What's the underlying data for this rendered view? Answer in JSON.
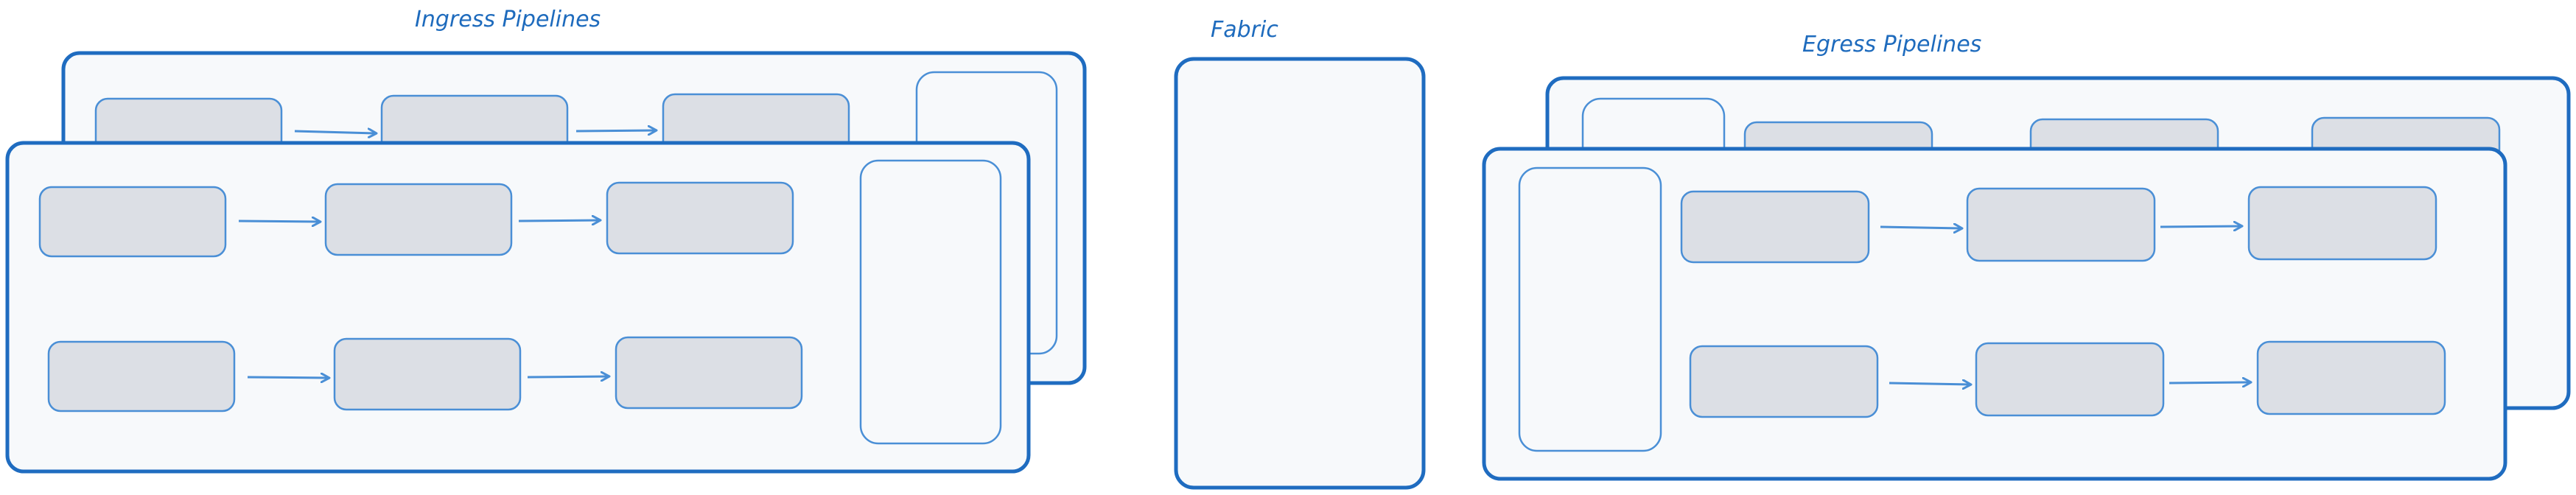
{
  "colors": {
    "frame_stroke": "#1f6cc0",
    "frame_fill": "#f7f9fb",
    "box_fill": "#dcdfe5",
    "box_stroke": "#4a8fd6",
    "arrow": "#4a8fd6",
    "label": "#1e6bbd"
  },
  "labels": {
    "ingress": "Ingress Pipelines",
    "fabric": "Fabric",
    "egress": "Egress Pipelines"
  },
  "diagram": {
    "ingress": {
      "layers": 2,
      "rows_per_front_frame": 2,
      "stages_per_row": 3,
      "has_side_block": true
    },
    "fabric": {
      "blocks": 1
    },
    "egress": {
      "layers": 2,
      "rows_per_front_frame": 2,
      "stages_per_row": 3,
      "has_side_block": true
    }
  }
}
